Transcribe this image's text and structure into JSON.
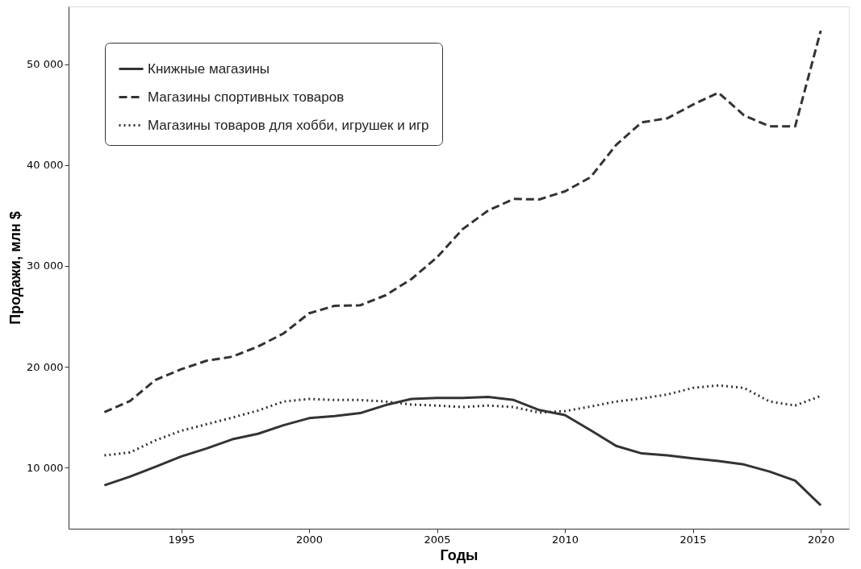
{
  "chart_data": {
    "type": "line",
    "xlabel": "Годы",
    "ylabel": "Продажи, млн $",
    "x": [
      1992,
      1993,
      1994,
      1995,
      1996,
      1997,
      1998,
      1999,
      2000,
      2001,
      2002,
      2003,
      2004,
      2005,
      2006,
      2007,
      2008,
      2009,
      2010,
      2011,
      2012,
      2013,
      2014,
      2015,
      2016,
      2017,
      2018,
      2019,
      2020
    ],
    "series": [
      {
        "name": "Книжные магазины",
        "color": "#333333",
        "line_style": "solid",
        "values": [
          8240,
          9100,
          10080,
          11100,
          11900,
          12800,
          13350,
          14200,
          14900,
          15100,
          15400,
          16200,
          16800,
          16900,
          16900,
          17000,
          16700,
          15700,
          15200,
          13700,
          12150,
          11400,
          11200,
          10900,
          10650,
          10300,
          9600,
          8700,
          6250
        ]
      },
      {
        "name": "Магазины спортивных товаров",
        "color": "#333333",
        "line_style": "dashed",
        "values": [
          15500,
          16600,
          18700,
          19750,
          20600,
          21000,
          22000,
          23300,
          25300,
          26050,
          26100,
          27100,
          28700,
          30850,
          33650,
          35500,
          36650,
          36600,
          37400,
          38800,
          42000,
          44250,
          44650,
          46000,
          47200,
          44950,
          43850,
          43850,
          53350
        ]
      },
      {
        "name": "Магазины товаров для хобби, игрушек и игр",
        "color": "#333333",
        "line_style": "dotted",
        "values": [
          11200,
          11500,
          12700,
          13650,
          14300,
          14950,
          15650,
          16550,
          16800,
          16700,
          16700,
          16550,
          16250,
          16150,
          16000,
          16150,
          16000,
          15450,
          15600,
          16050,
          16550,
          16850,
          17250,
          17900,
          18150,
          17900,
          16550,
          16150,
          17100
        ]
      }
    ],
    "xlim": [
      1990.6,
      2021.1
    ],
    "xticks": [
      1995,
      2000,
      2005,
      2010,
      2015,
      2020
    ],
    "ylim": [
      3930,
      55750
    ],
    "yticks": [
      {
        "value": 10000,
        "label": "10 000"
      },
      {
        "value": 20000,
        "label": "20 000"
      },
      {
        "value": 30000,
        "label": "30 000"
      },
      {
        "value": 40000,
        "label": "40 000"
      },
      {
        "value": 50000,
        "label": "50 000"
      }
    ],
    "grid": false,
    "legend": "top left"
  }
}
